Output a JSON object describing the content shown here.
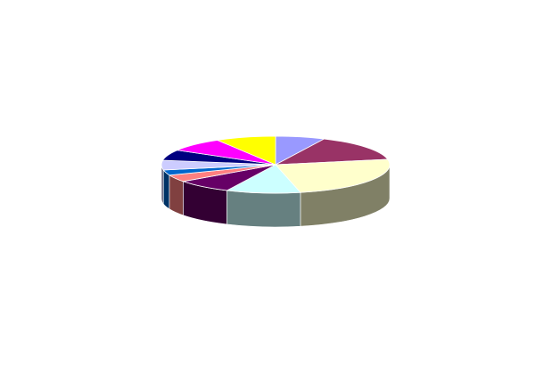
{
  "chart_data": {
    "type": "pie",
    "title": "",
    "three_d": true,
    "legend": "none",
    "data_labels": false,
    "slices": [
      {
        "value": 7.0,
        "color": "#9999FF"
      },
      {
        "value": 15.0,
        "color": "#993366"
      },
      {
        "value": 24.5,
        "color": "#FFFFCC"
      },
      {
        "value": 10.5,
        "color": "#CCFFFF"
      },
      {
        "value": 8.0,
        "color": "#660066"
      },
      {
        "value": 4.0,
        "color": "#FF8080"
      },
      {
        "value": 3.0,
        "color": "#0066CC"
      },
      {
        "value": 5.5,
        "color": "#CCCCFF"
      },
      {
        "value": 6.0,
        "color": "#000080"
      },
      {
        "value": 8.0,
        "color": "#FF00FF"
      },
      {
        "value": 8.5,
        "color": "#FFFF00"
      }
    ]
  }
}
